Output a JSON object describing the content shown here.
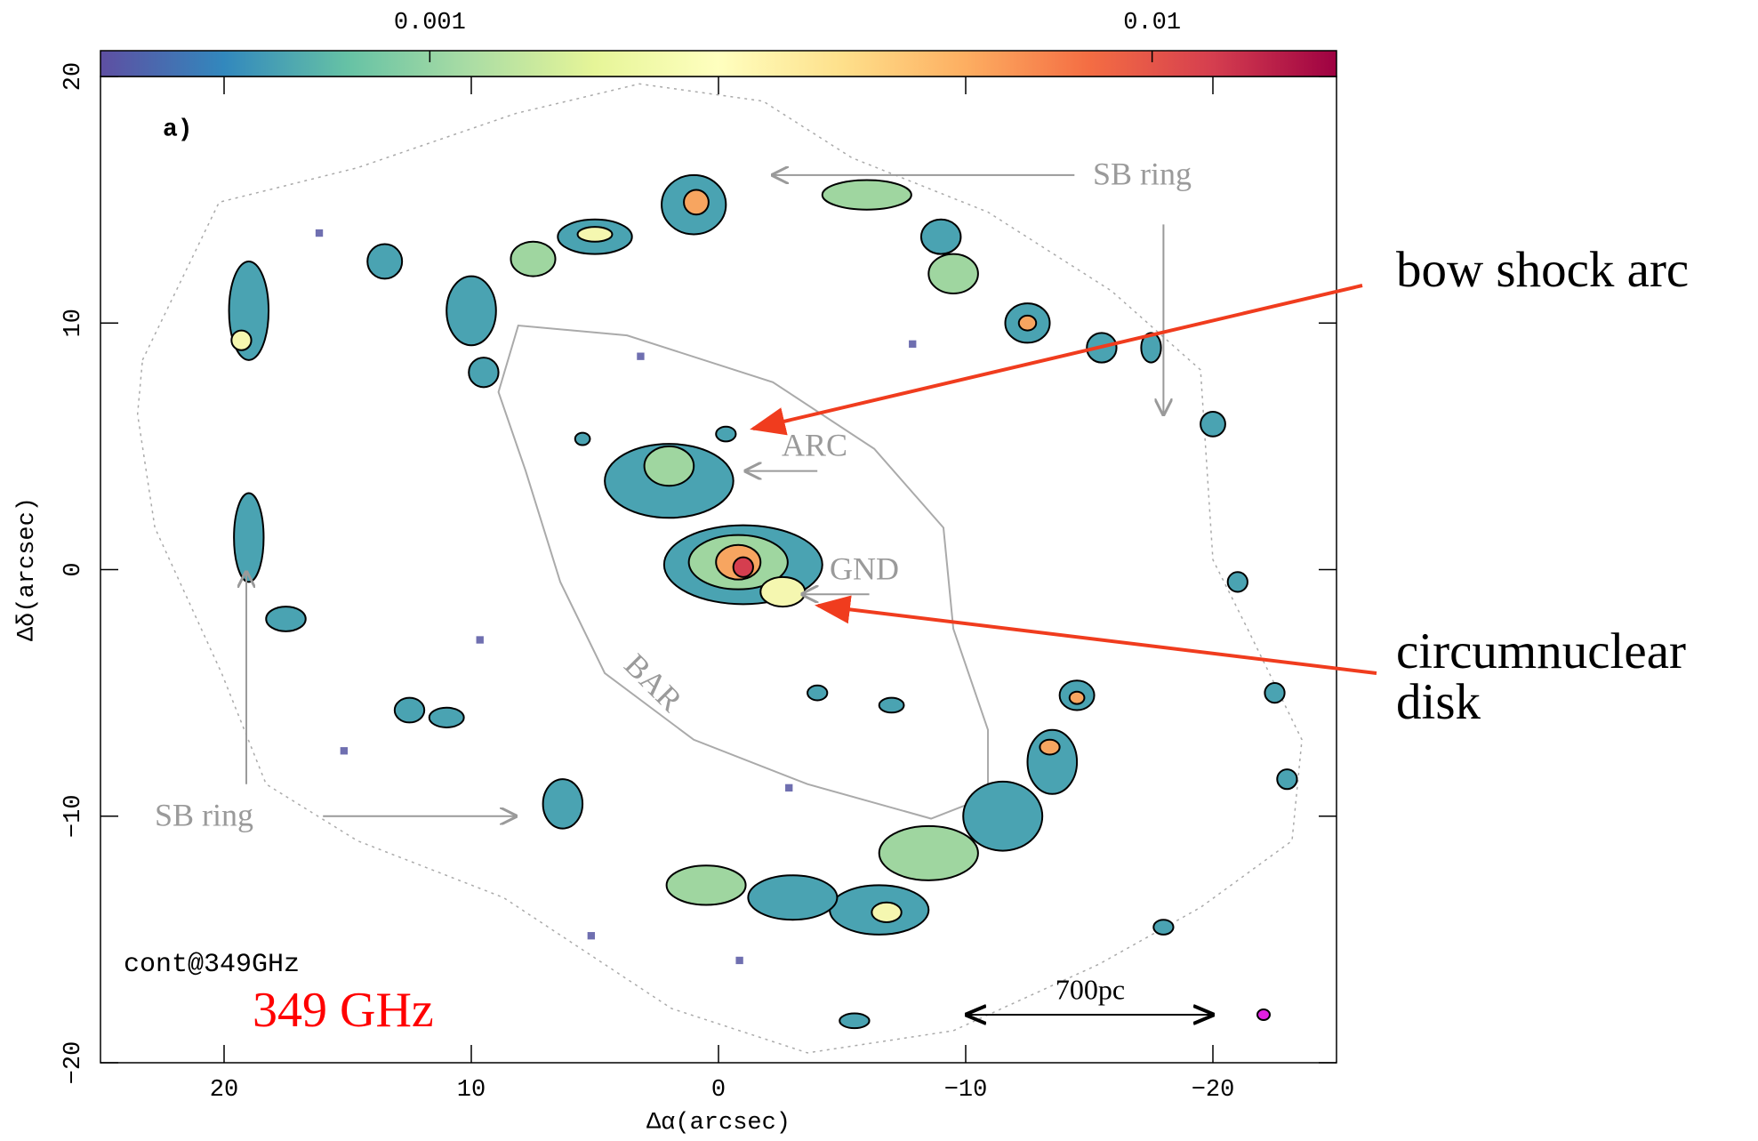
{
  "chart_data": {
    "type": "map",
    "panel_label": "a)",
    "x_label": "Δα(arcsec)",
    "y_label": "Δδ(arcsec)",
    "xlim": [
      25,
      -25
    ],
    "ylim": [
      -20,
      20
    ],
    "xticks": [
      {
        "value": 20,
        "label": "20"
      },
      {
        "value": 10,
        "label": "10"
      },
      0,
      {
        "value": -10,
        "label": "−10"
      },
      {
        "value": -20,
        "label": "−20"
      }
    ],
    "yticks": [
      {
        "value": -20,
        "label": "−20"
      },
      {
        "value": -10,
        "label": "−10"
      },
      0,
      10,
      20
    ],
    "colorbar": {
      "log": true,
      "lim": [
        0.00035,
        0.018
      ],
      "ticks": [
        0.001,
        0.01
      ],
      "colormap": [
        "#5e4fa2",
        "#3288bd",
        "#66c2a5",
        "#abdda4",
        "#e6f598",
        "#ffffbf",
        "#fee08b",
        "#fdae61",
        "#f46d43",
        "#d53e4f",
        "#9e0142"
      ]
    },
    "annotations": [
      "SB ring",
      "ARC",
      "GND",
      "BAR",
      "SB ring",
      "cont@349GHz",
      "349 GHz",
      "700pc"
    ],
    "callouts": [
      "bow shock arc",
      "circumnuclear",
      "disk"
    ]
  }
}
